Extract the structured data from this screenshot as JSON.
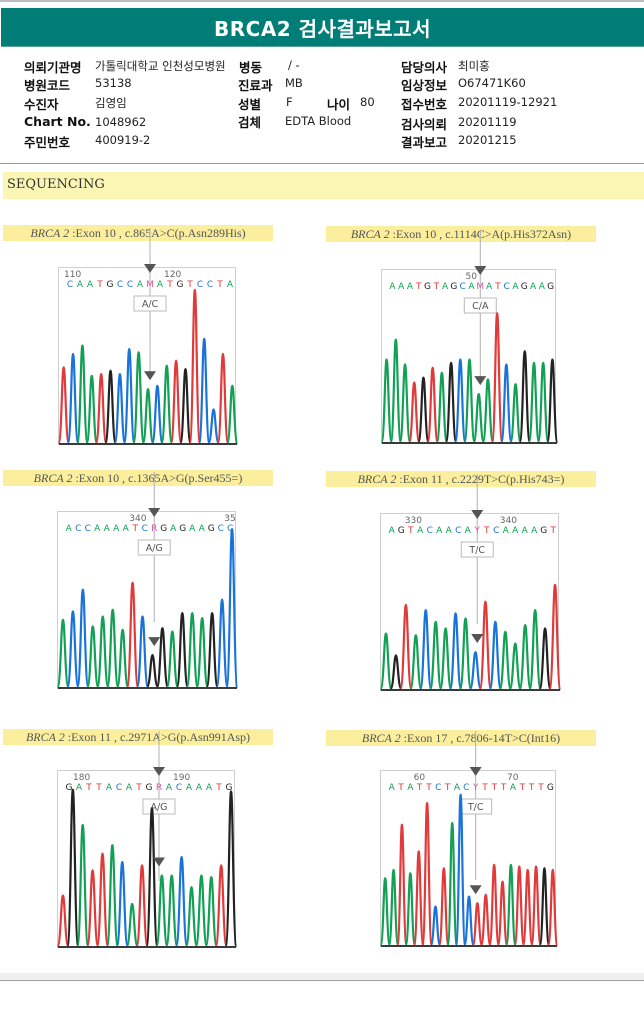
{
  "header": {
    "title": "BRCA2 검사결과보고서",
    "accent_color": "#007d76"
  },
  "patient_info": {
    "institution_label": "의뢰기관명",
    "institution_value": "가톨릭대학교 인천성모병원",
    "ward_label": "병동",
    "ward_value": "/ -",
    "doctor_label": "담당의사",
    "doctor_value": "최미홍",
    "hospital_code_label": "병원코드",
    "hospital_code_value": "53138",
    "department_label": "진료과",
    "department_value": "MB",
    "clinical_info_label": "임상정보",
    "clinical_info_value": "O67471K60",
    "patient_label": "수진자",
    "patient_value": "김영임",
    "sex_label": "성별",
    "sex_value": "F",
    "age_label": "나이",
    "age_value": "80",
    "receipt_label": "접수번호",
    "receipt_value": "20201119-12921",
    "chart_label": "Chart No.",
    "chart_value": "1048962",
    "specimen_label": "검체",
    "specimen_value": "EDTA Blood",
    "request_date_label": "검사의뢰",
    "request_date_value": "20201119",
    "rrn_label": "주민번호",
    "rrn_value": "400919-2",
    "report_date_label": "결과보고",
    "report_date_value": "20201215"
  },
  "section": {
    "title": "SEQUENCING"
  },
  "chart_data": [
    {
      "type": "chromatogram",
      "gene": "BRCA 2",
      "title": "Exon 10 , c.865A>C(p.Asn289His)",
      "genotype": "A/C",
      "position_labels": [
        {
          "text": "110",
          "index": 0
        },
        {
          "text": "120",
          "index": 10
        }
      ],
      "sequence": [
        "C",
        "A",
        "A",
        "T",
        "G",
        "C",
        "C",
        "A",
        "M",
        "A",
        "T",
        "G",
        "T",
        "C",
        "C",
        "T",
        "A"
      ],
      "variant_index": 8,
      "peaks": [
        {
          "base": "T",
          "h": 0.45
        },
        {
          "base": "C",
          "h": 0.53
        },
        {
          "base": "A",
          "h": 0.58
        },
        {
          "base": "A",
          "h": 0.4
        },
        {
          "base": "T",
          "h": 0.41
        },
        {
          "base": "G",
          "h": 0.43
        },
        {
          "base": "C",
          "h": 0.41
        },
        {
          "base": "C",
          "h": 0.56
        },
        {
          "base": "A",
          "h": 0.54
        },
        {
          "base": "A",
          "h": 0.32
        },
        {
          "base": "C",
          "h": 0.34
        },
        {
          "base": "A",
          "h": 0.46
        },
        {
          "base": "T",
          "h": 0.49
        },
        {
          "base": "G",
          "h": 0.44
        },
        {
          "base": "T",
          "h": 0.91
        },
        {
          "base": "C",
          "h": 0.62
        },
        {
          "base": "C",
          "h": 0.2
        },
        {
          "base": "T",
          "h": 0.53
        },
        {
          "base": "A",
          "h": 0.34
        }
      ]
    },
    {
      "type": "chromatogram",
      "gene": "BRCA 2",
      "title": "Exon 10 , c.1114C>A(p.His372Asn)",
      "genotype": "C/A",
      "position_labels": [
        {
          "text": "50",
          "index": 9
        }
      ],
      "sequence": [
        "A",
        "A",
        "A",
        "T",
        "G",
        "T",
        "A",
        "G",
        "C",
        "A",
        "M",
        "A",
        "T",
        "C",
        "A",
        "G",
        "A",
        "A",
        "G"
      ],
      "variant_index": 10,
      "peaks": [
        {
          "base": "A",
          "h": 0.5
        },
        {
          "base": "A",
          "h": 0.62
        },
        {
          "base": "A",
          "h": 0.47
        },
        {
          "base": "T",
          "h": 0.36
        },
        {
          "base": "G",
          "h": 0.39
        },
        {
          "base": "T",
          "h": 0.45
        },
        {
          "base": "A",
          "h": 0.42
        },
        {
          "base": "G",
          "h": 0.48
        },
        {
          "base": "C",
          "h": 0.5
        },
        {
          "base": "A",
          "h": 0.5
        },
        {
          "base": "A",
          "h": 0.29
        },
        {
          "base": "A",
          "h": 0.38
        },
        {
          "base": "T",
          "h": 0.78
        },
        {
          "base": "C",
          "h": 0.47
        },
        {
          "base": "A",
          "h": 0.35
        },
        {
          "base": "G",
          "h": 0.55
        },
        {
          "base": "A",
          "h": 0.48
        },
        {
          "base": "A",
          "h": 0.48
        },
        {
          "base": "G",
          "h": 0.5
        }
      ]
    },
    {
      "type": "chromatogram",
      "gene": "BRCA 2",
      "title": "Exon 10 , c.1365A>G(p.Ser455=)",
      "genotype": "A/G",
      "position_labels": [
        {
          "text": "340",
          "index": 7
        },
        {
          "text": "35",
          "index": 17
        }
      ],
      "sequence": [
        "A",
        "C",
        "C",
        "A",
        "A",
        "A",
        "A",
        "T",
        "C",
        "R",
        "G",
        "A",
        "G",
        "A",
        "A",
        "G",
        "C",
        "C"
      ],
      "variant_index": 9,
      "peaks": [
        {
          "base": "A",
          "h": 0.4
        },
        {
          "base": "C",
          "h": 0.45
        },
        {
          "base": "C",
          "h": 0.58
        },
        {
          "base": "A",
          "h": 0.36
        },
        {
          "base": "A",
          "h": 0.42
        },
        {
          "base": "A",
          "h": 0.46
        },
        {
          "base": "A",
          "h": 0.34
        },
        {
          "base": "T",
          "h": 0.62
        },
        {
          "base": "C",
          "h": 0.42
        },
        {
          "base": "G",
          "h": 0.19
        },
        {
          "base": "G",
          "h": 0.35
        },
        {
          "base": "A",
          "h": 0.33
        },
        {
          "base": "G",
          "h": 0.44
        },
        {
          "base": "A",
          "h": 0.44
        },
        {
          "base": "A",
          "h": 0.41
        },
        {
          "base": "G",
          "h": 0.44
        },
        {
          "base": "C",
          "h": 0.52
        },
        {
          "base": "C",
          "h": 0.94
        }
      ]
    },
    {
      "type": "chromatogram",
      "gene": "BRCA 2",
      "title": "Exon 11 , c.2229T>C(p.His743=)",
      "genotype": "T/C",
      "position_labels": [
        {
          "text": "330",
          "index": 2
        },
        {
          "text": "340",
          "index": 12
        }
      ],
      "sequence": [
        "A",
        "G",
        "T",
        "A",
        "C",
        "A",
        "A",
        "C",
        "A",
        "Y",
        "T",
        "C",
        "A",
        "A",
        "A",
        "A",
        "G",
        "T"
      ],
      "variant_index": 9,
      "peaks": [
        {
          "base": "A",
          "h": 0.33
        },
        {
          "base": "G",
          "h": 0.2
        },
        {
          "base": "T",
          "h": 0.5
        },
        {
          "base": "A",
          "h": 0.32
        },
        {
          "base": "C",
          "h": 0.47
        },
        {
          "base": "A",
          "h": 0.4
        },
        {
          "base": "A",
          "h": 0.36
        },
        {
          "base": "C",
          "h": 0.45
        },
        {
          "base": "A",
          "h": 0.42
        },
        {
          "base": "C",
          "h": 0.22
        },
        {
          "base": "T",
          "h": 0.52
        },
        {
          "base": "C",
          "h": 0.4
        },
        {
          "base": "A",
          "h": 0.34
        },
        {
          "base": "A",
          "h": 0.27
        },
        {
          "base": "A",
          "h": 0.38
        },
        {
          "base": "A",
          "h": 0.47
        },
        {
          "base": "G",
          "h": 0.36
        },
        {
          "base": "T",
          "h": 0.62
        }
      ]
    },
    {
      "type": "chromatogram",
      "gene": "BRCA 2",
      "title": "Exon 11 , c.2971A>G(p.Asn991Asp)",
      "genotype": "A/G",
      "position_labels": [
        {
          "text": "180",
          "index": 1
        },
        {
          "text": "190",
          "index": 11
        }
      ],
      "sequence": [
        "G",
        "A",
        "T",
        "T",
        "A",
        "C",
        "A",
        "T",
        "G",
        "R",
        "A",
        "C",
        "A",
        "A",
        "A",
        "T",
        "G"
      ],
      "variant_index": 9,
      "peaks": [
        {
          "base": "T",
          "h": 0.3
        },
        {
          "base": "G",
          "h": 0.93
        },
        {
          "base": "A",
          "h": 0.72
        },
        {
          "base": "T",
          "h": 0.45
        },
        {
          "base": "T",
          "h": 0.55
        },
        {
          "base": "A",
          "h": 0.6
        },
        {
          "base": "C",
          "h": 0.5
        },
        {
          "base": "A",
          "h": 0.25
        },
        {
          "base": "T",
          "h": 0.48
        },
        {
          "base": "G",
          "h": 0.82
        },
        {
          "base": "A",
          "h": 0.42
        },
        {
          "base": "A",
          "h": 0.42
        },
        {
          "base": "C",
          "h": 0.53
        },
        {
          "base": "A",
          "h": 0.35
        },
        {
          "base": "A",
          "h": 0.42
        },
        {
          "base": "A",
          "h": 0.41
        },
        {
          "base": "T",
          "h": 0.48
        },
        {
          "base": "G",
          "h": 0.92
        }
      ]
    },
    {
      "type": "chromatogram",
      "gene": "BRCA 2",
      "title": "Exon 17 , c.7806-14T>C(Int16)",
      "genotype": "T/C",
      "position_labels": [
        {
          "text": "60",
          "index": 3
        },
        {
          "text": "70",
          "index": 13
        }
      ],
      "sequence": [
        "A",
        "T",
        "A",
        "T",
        "T",
        "C",
        "T",
        "A",
        "C",
        "Y",
        "T",
        "T",
        "T",
        "A",
        "T",
        "T",
        "T",
        "G"
      ],
      "variant_index": 9,
      "peaks": [
        {
          "base": "A",
          "h": 0.4
        },
        {
          "base": "A",
          "h": 0.45
        },
        {
          "base": "T",
          "h": 0.72
        },
        {
          "base": "A",
          "h": 0.43
        },
        {
          "base": "T",
          "h": 0.56
        },
        {
          "base": "T",
          "h": 0.85
        },
        {
          "base": "C",
          "h": 0.23
        },
        {
          "base": "T",
          "h": 0.46
        },
        {
          "base": "A",
          "h": 0.73
        },
        {
          "base": "C",
          "h": 0.9
        },
        {
          "base": "C",
          "h": 0.29
        },
        {
          "base": "T",
          "h": 0.25
        },
        {
          "base": "T",
          "h": 0.3
        },
        {
          "base": "T",
          "h": 0.48
        },
        {
          "base": "T",
          "h": 0.38
        },
        {
          "base": "A",
          "h": 0.48
        },
        {
          "base": "T",
          "h": 0.47
        },
        {
          "base": "T",
          "h": 0.45
        },
        {
          "base": "T",
          "h": 0.47
        },
        {
          "base": "G",
          "h": 0.46
        },
        {
          "base": "T",
          "h": 0.45
        }
      ]
    }
  ],
  "base_colors": {
    "A": "#12a054",
    "C": "#1a73d9",
    "G": "#222222",
    "T": "#e03a3a",
    "ambiguous": "#e0559a"
  }
}
